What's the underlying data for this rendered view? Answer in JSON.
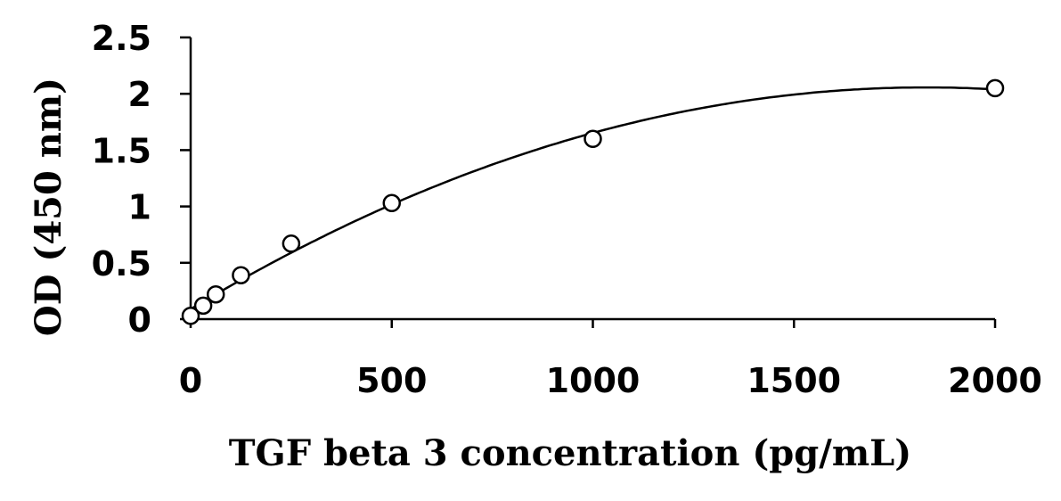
{
  "chart_data": {
    "type": "scatter",
    "title": "",
    "xlabel": "TGF beta 3 concentration (pg/mL)",
    "ylabel": "OD (450 nm)",
    "xlim": [
      0,
      2000
    ],
    "ylim": [
      0,
      2.5
    ],
    "x_ticks": [
      "0",
      "500",
      "1000",
      "1500",
      "2000"
    ],
    "y_ticks": [
      "0",
      "0.5",
      "1",
      "1.5",
      "2",
      "2.5"
    ],
    "grid": false,
    "legend": "none",
    "series": [
      {
        "marker": "open-circle",
        "x": [
          0,
          31.25,
          62.5,
          125,
          250,
          500,
          1000,
          2000
        ],
        "y": [
          0.03,
          0.12,
          0.22,
          0.39,
          0.67,
          1.03,
          1.6,
          2.05
        ]
      }
    ],
    "fit_curve": "polynomial (order 2) trendline",
    "colors": {
      "marks": "#000000",
      "background": "#ffffff"
    }
  }
}
